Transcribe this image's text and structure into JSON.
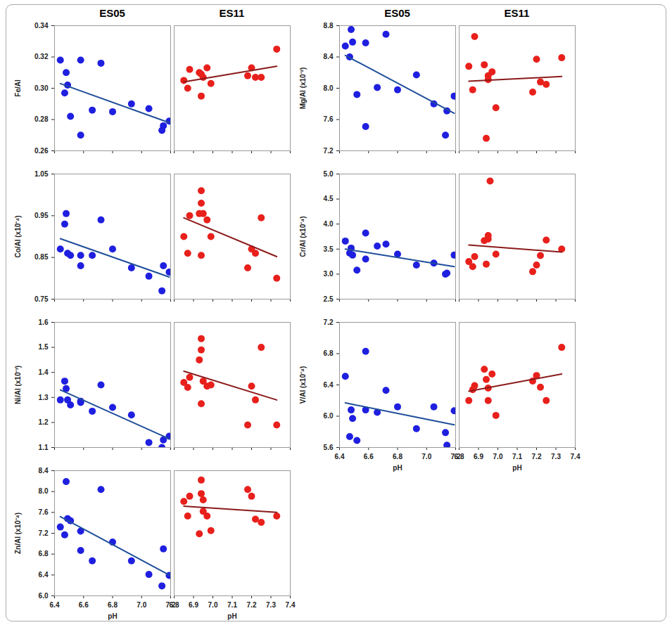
{
  "chart_data": [
    {
      "type": "scatter",
      "title": "ES05",
      "y_label": "Fe/Al",
      "tick_labels": "y",
      "color": "#1f1fe0",
      "x": [
        6.44,
        6.47,
        6.48,
        6.49,
        6.51,
        6.58,
        6.58,
        6.66,
        6.72,
        6.8,
        6.93,
        7.05,
        7.14,
        7.15,
        7.19
      ],
      "values": [
        0.318,
        0.297,
        0.31,
        0.302,
        0.282,
        0.318,
        0.27,
        0.286,
        0.316,
        0.285,
        0.29,
        0.287,
        0.273,
        0.276,
        0.279
      ],
      "trend": {
        "x": [
          6.44,
          7.19
        ],
        "values": [
          0.303,
          0.278
        ],
        "color": "#1f4e9a"
      },
      "xlim": [
        6.4,
        7.2
      ],
      "xticks": [
        6.4,
        6.6,
        6.8,
        {
          "value": 7,
          "label": "7.0"
        },
        7.2
      ],
      "ylim": [
        0.26,
        0.34
      ],
      "yticks": [
        0.26,
        0.28,
        {
          "value": 0.3,
          "label": "0.30"
        },
        0.32,
        0.34
      ]
    },
    {
      "type": "scatter",
      "title": "ES11",
      "tick_labels": false,
      "color": "#e8201c",
      "x": [
        6.85,
        6.87,
        6.88,
        6.93,
        6.94,
        6.94,
        6.95,
        6.97,
        6.99,
        7.18,
        7.2,
        7.22,
        7.25,
        7.33
      ],
      "values": [
        0.305,
        0.3,
        0.312,
        0.31,
        0.295,
        0.309,
        0.307,
        0.313,
        0.303,
        0.308,
        0.313,
        0.307,
        0.307,
        0.325
      ],
      "trend": {
        "x": [
          6.85,
          7.33
        ],
        "values": [
          0.304,
          0.314
        ],
        "color": "#8b1a1a"
      },
      "xlim": [
        6.8,
        7.4
      ],
      "xticks": [
        6.8,
        6.9,
        {
          "value": 7,
          "label": "7.0"
        },
        7.1,
        7.2,
        7.3,
        7.4
      ],
      "ylim": [
        0.26,
        0.34
      ],
      "yticks": [
        0.26,
        0.28,
        {
          "value": 0.3,
          "label": "0.30"
        },
        0.32,
        0.34
      ]
    },
    {
      "type": "scatter",
      "y_label": "Co/Al (x10⁻⁴)",
      "tick_labels": "y",
      "color": "#1f1fe0",
      "x": [
        6.44,
        6.47,
        6.48,
        6.49,
        6.51,
        6.58,
        6.58,
        6.66,
        6.72,
        6.8,
        6.93,
        7.05,
        7.14,
        7.15,
        7.19
      ],
      "values": [
        0.87,
        0.93,
        0.955,
        0.86,
        0.855,
        0.83,
        0.855,
        0.855,
        0.94,
        0.87,
        0.825,
        0.805,
        0.77,
        0.83,
        0.815
      ],
      "trend": {
        "x": [
          6.44,
          7.19
        ],
        "values": [
          0.895,
          0.803
        ],
        "color": "#1f4e9a"
      },
      "xlim": [
        6.4,
        7.2
      ],
      "xticks": [
        6.4,
        6.6,
        6.8,
        {
          "value": 7,
          "label": "7.0"
        },
        7.2
      ],
      "ylim": [
        0.75,
        1.05
      ],
      "yticks": [
        0.75,
        0.85,
        0.95,
        1.05
      ]
    },
    {
      "type": "scatter",
      "tick_labels": false,
      "color": "#e8201c",
      "x": [
        6.85,
        6.87,
        6.88,
        6.93,
        6.94,
        6.94,
        6.95,
        6.94,
        6.97,
        6.99,
        7.18,
        7.2,
        7.22,
        7.25,
        7.33
      ],
      "values": [
        0.9,
        0.86,
        0.95,
        0.955,
        1.01,
        0.98,
        0.955,
        0.855,
        0.94,
        0.9,
        0.825,
        0.87,
        0.86,
        0.945,
        0.8
      ],
      "trend": {
        "x": [
          6.85,
          7.33
        ],
        "values": [
          0.945,
          0.852
        ],
        "color": "#8b1a1a"
      },
      "xlim": [
        6.8,
        7.4
      ],
      "xticks": [
        6.8,
        6.9,
        {
          "value": 7,
          "label": "7.0"
        },
        7.1,
        7.2,
        7.3,
        7.4
      ],
      "ylim": [
        0.75,
        1.05
      ],
      "yticks": [
        0.75,
        0.85,
        0.95,
        1.05
      ]
    },
    {
      "type": "scatter",
      "y_label": "Ni/Al (x10⁻³)",
      "tick_labels": "y",
      "color": "#1f1fe0",
      "x": [
        6.44,
        6.47,
        6.48,
        6.49,
        6.51,
        6.58,
        6.58,
        6.66,
        6.72,
        6.8,
        6.93,
        7.05,
        7.14,
        7.15,
        7.19
      ],
      "values": [
        1.29,
        1.365,
        1.335,
        1.29,
        1.27,
        1.28,
        1.285,
        1.245,
        1.35,
        1.26,
        1.23,
        1.12,
        1.1,
        1.13,
        1.145
      ],
      "trend": {
        "x": [
          6.44,
          7.19
        ],
        "values": [
          1.33,
          1.135
        ],
        "color": "#1f4e9a"
      },
      "xlim": [
        6.4,
        7.2
      ],
      "xticks": [
        6.4,
        6.6,
        6.8,
        {
          "value": 7,
          "label": "7.0"
        },
        7.2
      ],
      "ylim": [
        1.1,
        1.6
      ],
      "yticks": [
        1.1,
        1.2,
        1.3,
        1.4,
        1.5,
        1.6
      ]
    },
    {
      "type": "scatter",
      "tick_labels": false,
      "color": "#e8201c",
      "x": [
        6.85,
        6.87,
        6.88,
        6.93,
        6.94,
        6.94,
        6.94,
        6.95,
        6.97,
        6.99,
        7.18,
        7.2,
        7.22,
        7.25,
        7.33
      ],
      "values": [
        1.36,
        1.34,
        1.38,
        1.45,
        1.535,
        1.49,
        1.275,
        1.365,
        1.345,
        1.35,
        1.19,
        1.345,
        1.29,
        1.5,
        1.19
      ],
      "trend": {
        "x": [
          6.85,
          7.33
        ],
        "values": [
          1.405,
          1.29
        ],
        "color": "#8b1a1a"
      },
      "xlim": [
        6.8,
        7.4
      ],
      "xticks": [
        6.8,
        6.9,
        {
          "value": 7,
          "label": "7.0"
        },
        7.1,
        7.2,
        7.3,
        7.4
      ],
      "ylim": [
        1.1,
        1.6
      ],
      "yticks": [
        1.1,
        1.2,
        1.3,
        1.4,
        1.5,
        1.6
      ]
    },
    {
      "type": "scatter",
      "y_label": "Zn/Al (x10⁻⁴)",
      "x_label": "pH",
      "tick_labels": true,
      "color": "#1f1fe0",
      "x": [
        6.44,
        6.47,
        6.48,
        6.49,
        6.51,
        6.58,
        6.58,
        6.66,
        6.72,
        6.8,
        6.93,
        7.05,
        7.14,
        7.15,
        7.19
      ],
      "values": [
        7.32,
        7.17,
        8.19,
        7.48,
        7.44,
        7.24,
        6.87,
        6.67,
        8.04,
        7.03,
        6.67,
        6.41,
        6.19,
        6.9,
        6.39
      ],
      "trend": {
        "x": [
          6.44,
          7.19
        ],
        "values": [
          7.52,
          6.4
        ],
        "color": "#1f4e9a"
      },
      "xlim": [
        6.4,
        7.2
      ],
      "xticks": [
        6.4,
        6.6,
        6.8,
        {
          "value": 7,
          "label": "7.0"
        },
        7.2
      ],
      "ylim": [
        6,
        8.4
      ],
      "yticks": [
        {
          "value": 6,
          "label": "6.0"
        },
        6.4,
        6.8,
        7.2,
        7.6,
        {
          "value": 8,
          "label": "8.0"
        },
        8.4
      ]
    },
    {
      "type": "scatter",
      "x_label": "pH",
      "tick_labels": "x",
      "color": "#e8201c",
      "x": [
        6.85,
        6.87,
        6.88,
        6.93,
        6.94,
        6.94,
        6.95,
        6.95,
        6.97,
        6.99,
        7.18,
        7.2,
        7.22,
        7.25,
        7.33
      ],
      "values": [
        7.81,
        7.53,
        7.91,
        7.19,
        8.22,
        7.96,
        7.62,
        7.84,
        7.53,
        7.25,
        8.04,
        7.91,
        7.47,
        7.41,
        7.53
      ],
      "trend": {
        "x": [
          6.85,
          7.33
        ],
        "values": [
          7.72,
          7.6
        ],
        "color": "#8b1a1a"
      },
      "xlim": [
        6.8,
        7.4
      ],
      "xticks": [
        6.8,
        6.9,
        {
          "value": 7,
          "label": "7.0"
        },
        7.1,
        7.2,
        7.3,
        7.4
      ],
      "ylim": [
        6,
        8.4
      ],
      "yticks": [
        {
          "value": 6,
          "label": "6.0"
        },
        6.4,
        6.8,
        7.2,
        7.6,
        {
          "value": 8,
          "label": "8.0"
        },
        8.4
      ]
    },
    {
      "type": "scatter",
      "title": "ES05",
      "y_label": "Mg/Al (x10⁻²)",
      "tick_labels": "y",
      "color": "#1f1fe0",
      "x": [
        6.44,
        6.47,
        6.48,
        6.49,
        6.52,
        6.58,
        6.58,
        6.66,
        6.72,
        6.8,
        6.93,
        7.05,
        7.13,
        7.14,
        7.19
      ],
      "values": [
        8.54,
        8.4,
        8.75,
        8.59,
        7.92,
        8.58,
        7.51,
        8.01,
        8.69,
        7.98,
        8.17,
        7.8,
        7.4,
        7.71,
        7.9
      ],
      "trend": {
        "x": [
          6.44,
          7.19
        ],
        "values": [
          8.42,
          7.68
        ],
        "color": "#1f4e9a"
      },
      "xlim": [
        6.4,
        7.2
      ],
      "xticks": [
        6.4,
        6.6,
        6.8,
        {
          "value": 7,
          "label": "7.0"
        },
        7.2
      ],
      "ylim": [
        7.2,
        8.8
      ],
      "yticks": [
        7.2,
        7.6,
        {
          "value": 8,
          "label": "8.0"
        },
        8.4,
        8.8
      ]
    },
    {
      "type": "scatter",
      "title": "ES11",
      "tick_labels": false,
      "color": "#e8201c",
      "x": [
        6.85,
        6.87,
        6.88,
        6.93,
        6.94,
        6.95,
        6.95,
        6.97,
        6.99,
        7.18,
        7.2,
        7.22,
        7.25,
        7.33
      ],
      "values": [
        8.28,
        7.98,
        8.66,
        8.3,
        7.36,
        8.11,
        8.16,
        8.21,
        7.75,
        7.95,
        8.37,
        8.08,
        8.05,
        8.39
      ],
      "trend": {
        "x": [
          6.85,
          7.33
        ],
        "values": [
          8.09,
          8.15
        ],
        "color": "#8b1a1a"
      },
      "xlim": [
        6.8,
        7.4
      ],
      "xticks": [
        6.8,
        6.9,
        {
          "value": 7,
          "label": "7.0"
        },
        7.1,
        7.2,
        7.3,
        7.4
      ],
      "ylim": [
        7.2,
        8.8
      ],
      "yticks": [
        7.2,
        7.6,
        {
          "value": 8,
          "label": "8.0"
        },
        8.4,
        8.8
      ]
    },
    {
      "type": "scatter",
      "y_label": "Cr/Al (x10⁻⁴)",
      "tick_labels": "y",
      "color": "#1f1fe0",
      "x": [
        6.44,
        6.47,
        6.48,
        6.49,
        6.52,
        6.58,
        6.58,
        6.66,
        6.72,
        6.8,
        6.93,
        7.05,
        7.13,
        7.14,
        7.19
      ],
      "values": [
        3.66,
        3.42,
        3.52,
        3.38,
        3.08,
        3.82,
        3.3,
        3.56,
        3.6,
        3.4,
        3.18,
        3.22,
        3.0,
        3.02,
        3.38
      ],
      "trend": {
        "x": [
          6.44,
          7.19
        ],
        "values": [
          3.5,
          3.15
        ],
        "color": "#1f4e9a"
      },
      "xlim": [
        6.4,
        7.2
      ],
      "xticks": [
        6.4,
        6.6,
        6.8,
        {
          "value": 7,
          "label": "7.0"
        },
        7.2
      ],
      "ylim": [
        2.5,
        5
      ],
      "yticks": [
        2.5,
        {
          "value": 3,
          "label": "3.0"
        },
        3.5,
        {
          "value": 4,
          "label": "4.0"
        },
        4.5,
        {
          "value": 5,
          "label": "5.0"
        }
      ]
    },
    {
      "type": "scatter",
      "tick_labels": false,
      "color": "#e8201c",
      "x": [
        6.85,
        6.87,
        6.88,
        6.93,
        6.94,
        6.95,
        6.95,
        6.96,
        6.99,
        7.18,
        7.2,
        7.22,
        7.25,
        7.33
      ],
      "values": [
        3.25,
        3.15,
        3.35,
        3.67,
        3.2,
        3.77,
        3.7,
        4.86,
        3.4,
        3.05,
        3.18,
        3.37,
        3.68,
        3.5
      ],
      "trend": {
        "x": [
          6.85,
          7.33
        ],
        "values": [
          3.58,
          3.44
        ],
        "color": "#8b1a1a"
      },
      "xlim": [
        6.8,
        7.4
      ],
      "xticks": [
        6.8,
        6.9,
        {
          "value": 7,
          "label": "7.0"
        },
        7.1,
        7.2,
        7.3,
        7.4
      ],
      "ylim": [
        2.5,
        5
      ],
      "yticks": [
        2.5,
        {
          "value": 3,
          "label": "3.0"
        },
        3.5,
        {
          "value": 4,
          "label": "4.0"
        },
        4.5,
        {
          "value": 5,
          "label": "5.0"
        }
      ]
    },
    {
      "type": "scatter",
      "y_label": "V/Al (x10⁻⁴)",
      "x_label": "pH",
      "tick_labels": true,
      "color": "#1f1fe0",
      "x": [
        6.44,
        6.47,
        6.48,
        6.49,
        6.52,
        6.58,
        6.58,
        6.66,
        6.72,
        6.8,
        6.93,
        7.05,
        7.13,
        7.14,
        7.19
      ],
      "values": [
        6.51,
        5.74,
        6.08,
        5.97,
        5.69,
        6.83,
        6.08,
        6.05,
        6.33,
        6.12,
        5.84,
        6.12,
        5.79,
        5.63,
        6.07
      ],
      "trend": {
        "x": [
          6.44,
          7.19
        ],
        "values": [
          6.17,
          5.89
        ],
        "color": "#1f4e9a"
      },
      "xlim": [
        6.4,
        7.2
      ],
      "xticks": [
        6.4,
        6.6,
        6.8,
        {
          "value": 7,
          "label": "7.0"
        },
        7.2
      ],
      "ylim": [
        5.6,
        7.2
      ],
      "yticks": [
        5.6,
        {
          "value": 6,
          "label": "6.0"
        },
        6.4,
        6.8,
        7.2
      ]
    },
    {
      "type": "scatter",
      "x_label": "pH",
      "tick_labels": "x",
      "color": "#e8201c",
      "x": [
        6.85,
        6.87,
        6.88,
        6.93,
        6.94,
        6.95,
        6.95,
        6.97,
        6.99,
        7.18,
        7.2,
        7.22,
        7.25,
        7.33
      ],
      "values": [
        6.2,
        6.34,
        6.39,
        6.6,
        6.47,
        6.36,
        6.2,
        6.54,
        6.01,
        6.45,
        6.52,
        6.37,
        6.2,
        6.88
      ],
      "trend": {
        "x": [
          6.85,
          7.33
        ],
        "values": [
          6.32,
          6.54
        ],
        "color": "#8b1a1a"
      },
      "xlim": [
        6.8,
        7.4
      ],
      "xticks": [
        6.8,
        6.9,
        {
          "value": 7,
          "label": "7.0"
        },
        7.1,
        7.2,
        7.3,
        7.4
      ],
      "ylim": [
        5.6,
        7.2
      ],
      "yticks": [
        5.6,
        {
          "value": 6,
          "label": "6.0"
        },
        6.4,
        6.8,
        7.2
      ]
    }
  ]
}
